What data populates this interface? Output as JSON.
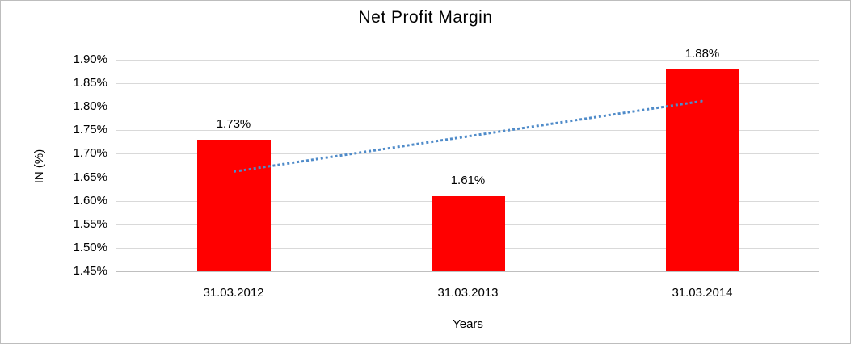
{
  "chart_data": {
    "type": "bar",
    "title": "Net Profit Margin",
    "xlabel": "Years",
    "ylabel": "IN (%)",
    "categories": [
      "31.03.2012",
      "31.03.2013",
      "31.03.2014"
    ],
    "values": [
      1.73,
      1.61,
      1.88
    ],
    "data_labels": [
      "1.73%",
      "1.61%",
      "1.88%"
    ],
    "ylim": [
      1.45,
      1.9
    ],
    "ytick_step": 0.05,
    "ytick_labels": [
      "1.45%",
      "1.50%",
      "1.55%",
      "1.60%",
      "1.65%",
      "1.70%",
      "1.75%",
      "1.80%",
      "1.85%",
      "1.90%"
    ],
    "grid": true,
    "legend": "none",
    "bar_color": "#ff0000",
    "gridline_color": "#d9d9d9",
    "text_color": "#000000",
    "trendline": {
      "type": "linear",
      "style": "dotted",
      "color": "#4f8bc9",
      "start_value": 1.665,
      "end_value": 1.815
    }
  }
}
